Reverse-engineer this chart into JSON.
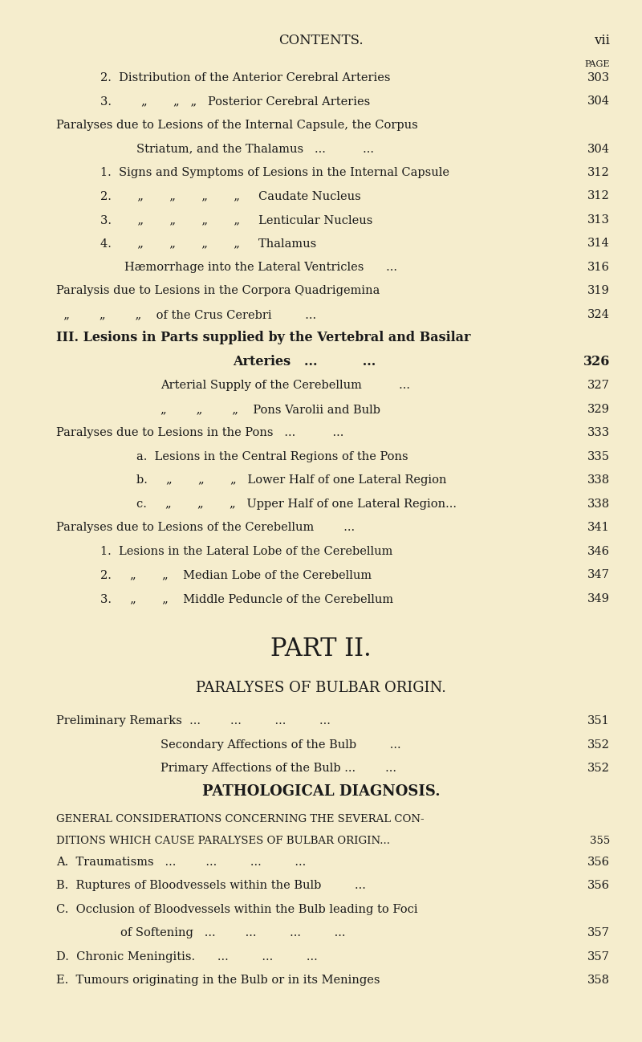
{
  "bg_color": "#f5edcd",
  "text_color": "#1a1a1a",
  "page_width": 8.0,
  "page_height": 12.98,
  "header_title": "CONTENTS.",
  "header_page": "vii",
  "page_label": "PAGE",
  "lines": [
    {
      "indent": 0.55,
      "text": "2.  Distribution of the Anterior Cerebral Arteries",
      "page": "303",
      "style": "normal",
      "size": 10.5
    },
    {
      "indent": 0.55,
      "text": "3.        „       „   „   Posterior Cerebral Arteries",
      "page": "304",
      "style": "normal",
      "size": 10.5
    },
    {
      "indent": 0.0,
      "text": "Paralyses due to Lesions of the Internal Capsule, the Corpus",
      "page": "",
      "style": "normal",
      "size": 10.5
    },
    {
      "indent": 1.0,
      "text": "Striatum, and the Thalamus   ...          ...",
      "page": "304",
      "style": "normal",
      "size": 10.5
    },
    {
      "indent": 0.55,
      "text": "1.  Signs and Symptoms of Lesions in the Internal Capsule",
      "page": "312",
      "style": "normal",
      "size": 10.5
    },
    {
      "indent": 0.55,
      "text": "2.       „       „       „       „     Caudate Nucleus",
      "page": "312",
      "style": "normal",
      "size": 10.5
    },
    {
      "indent": 0.55,
      "text": "3.       „       „       „       „     Lenticular Nucleus",
      "page": "313",
      "style": "normal",
      "size": 10.5
    },
    {
      "indent": 0.55,
      "text": "4.       „       „       „       „     Thalamus",
      "page": "314",
      "style": "normal",
      "size": 10.5
    },
    {
      "indent": 0.85,
      "text": "Hæmorrhage into the Lateral Ventricles      ...",
      "page": "316",
      "style": "normal",
      "size": 10.5
    },
    {
      "indent": 0.0,
      "text": "Paralysis due to Lesions in the Corpora Quadrigemina",
      "page": "319",
      "style": "normal",
      "size": 10.5
    },
    {
      "indent": 0.0,
      "text": "  „        „        „    of the Crus Cerebri         ...",
      "page": "324",
      "style": "normal",
      "size": 10.5
    },
    {
      "indent": 0.0,
      "text": "III. Lesions in Parts supplied by the Vertebral and Basilar",
      "page": "",
      "style": "bold",
      "size": 11.5
    },
    {
      "indent": 2.2,
      "text": "Arteries   ...          ...",
      "page": "326",
      "style": "bold",
      "size": 11.5
    },
    {
      "indent": 1.3,
      "text": "Arterial Supply of the Cerebellum          ...",
      "page": "327",
      "style": "normal",
      "size": 10.5
    },
    {
      "indent": 1.3,
      "text": "„        „        „    Pons Varolii and Bulb",
      "page": "329",
      "style": "normal",
      "size": 10.5
    },
    {
      "indent": 0.0,
      "text": "Paralyses due to Lesions in the Pons   ...          ...",
      "page": "333",
      "style": "normal",
      "size": 10.5
    },
    {
      "indent": 1.0,
      "text": "a.  Lesions in the Central Regions of the Pons",
      "page": "335",
      "style": "normal",
      "size": 10.5
    },
    {
      "indent": 1.0,
      "text": "b.     „       „       „   Lower Half of one Lateral Region",
      "page": "338",
      "style": "normal",
      "size": 10.5
    },
    {
      "indent": 1.0,
      "text": "c.     „       „       „   Upper Half of one Lateral Region...",
      "page": "338",
      "style": "normal",
      "size": 10.5
    },
    {
      "indent": 0.0,
      "text": "Paralyses due to Lesions of the Cerebellum        ...",
      "page": "341",
      "style": "normal",
      "size": 10.5
    },
    {
      "indent": 0.55,
      "text": "1.  Lesions in the Lateral Lobe of the Cerebellum",
      "page": "346",
      "style": "normal",
      "size": 10.5
    },
    {
      "indent": 0.55,
      "text": "2.     „       „    Median Lobe of the Cerebellum",
      "page": "347",
      "style": "normal",
      "size": 10.5
    },
    {
      "indent": 0.55,
      "text": "3.     „       „    Middle Peduncle of the Cerebellum",
      "page": "349",
      "style": "normal",
      "size": 10.5
    }
  ],
  "part2_lines": [
    {
      "indent": 0.0,
      "text": "PART II.",
      "style": "part_title",
      "size": 22,
      "page": ""
    },
    {
      "indent": 0.0,
      "text": "PARALYSES OF BULBAR ORIGIN.",
      "style": "section_title",
      "size": 13,
      "page": ""
    },
    {
      "indent": 0.0,
      "text": "Preliminary Remarks  ...        ...         ...         ...",
      "page": "351",
      "style": "normal",
      "size": 10.5
    },
    {
      "indent": 1.3,
      "text": "Secondary Affections of the Bulb         ...",
      "page": "352",
      "style": "normal",
      "size": 10.5
    },
    {
      "indent": 1.3,
      "text": "Primary Affections of the Bulb ...        ...",
      "page": "352",
      "style": "normal",
      "size": 10.5
    },
    {
      "indent": 0.0,
      "text": "PATHOLOGICAL DIAGNOSIS.",
      "style": "bold_center",
      "size": 13,
      "page": ""
    },
    {
      "indent": 0.0,
      "text": "GENERAL CONSIDERATIONS CONCERNING THE SEVERAL CON-",
      "style": "small_caps",
      "size": 9.5,
      "page": ""
    },
    {
      "indent": 0.0,
      "text": "DITIONS WHICH CAUSE PARALYSES OF BULBAR ORIGIN...",
      "page": "355",
      "style": "small_caps",
      "size": 9.5
    },
    {
      "indent": 0.0,
      "text": "A.  Traumatisms   ...        ...         ...         ...",
      "page": "356",
      "style": "normal",
      "size": 10.5
    },
    {
      "indent": 0.0,
      "text": "B.  Ruptures of Bloodvessels within the Bulb         ...",
      "page": "356",
      "style": "normal",
      "size": 10.5
    },
    {
      "indent": 0.0,
      "text": "C.  Occlusion of Bloodvessels within the Bulb leading to Foci",
      "page": "",
      "style": "normal",
      "size": 10.5
    },
    {
      "indent": 0.8,
      "text": "of Softening   ...        ...         ...         ...",
      "page": "357",
      "style": "normal",
      "size": 10.5
    },
    {
      "indent": 0.0,
      "text": "D.  Chronic Meningitis.      ...         ...         ...",
      "page": "357",
      "style": "normal",
      "size": 10.5
    },
    {
      "indent": 0.0,
      "text": "E.  Tumours originating in the Bulb or in its Meninges",
      "page": "358",
      "style": "normal",
      "size": 10.5
    }
  ]
}
